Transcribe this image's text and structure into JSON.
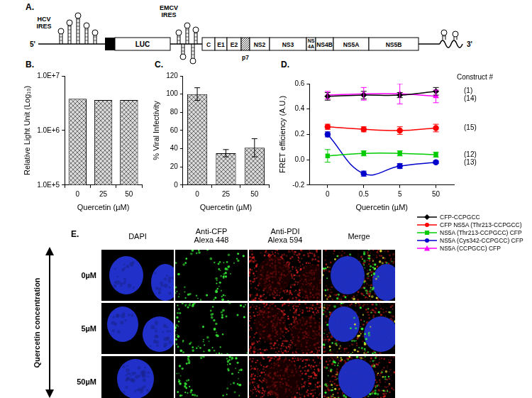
{
  "panel_a": {
    "title": "A.",
    "five_prime": "5'",
    "three_prime": "3'",
    "hcv_ires": [
      "HCV",
      "IRES"
    ],
    "reporter": "LUC",
    "emcv_ires": [
      "EMCV",
      "IRES"
    ],
    "genes": [
      [
        "C"
      ],
      [
        "E1"
      ],
      [
        "E2"
      ],
      [
        "p7"
      ],
      [
        "NS2"
      ],
      [
        "NS3"
      ],
      [
        "NS",
        "4A"
      ],
      [
        "NS4B"
      ],
      [
        "NS5A"
      ],
      [
        "NS5B"
      ]
    ]
  },
  "chart_data": [
    {
      "type": "bar",
      "title": "B.",
      "categories": [
        "0",
        "25",
        "50"
      ],
      "values": [
        3800000,
        3600000,
        3600000
      ],
      "color": "#d9d9d9",
      "x_label": "Quercetin (µM)",
      "y_label": "Relative Light Unit (Log₁₀)",
      "log": "y",
      "ylim": [
        100000,
        10000000
      ],
      "yticks": [
        {
          "value": 100000,
          "label": "1.0E+5"
        },
        {
          "value": 1000000,
          "label": "1.0E+6"
        },
        {
          "value": 10000000,
          "label": "1.0E+7"
        }
      ],
      "grid": false
    },
    {
      "type": "bar",
      "title": "C.",
      "categories": [
        "0",
        "25",
        "50"
      ],
      "values": [
        100,
        35,
        41
      ],
      "errors": [
        7,
        4,
        10
      ],
      "color": "#d9d9d9",
      "x_label": "Quercetin (µM)",
      "y_label": "% Viral Infectivity",
      "ylim": [
        0,
        120
      ],
      "yticks": [
        0,
        20,
        40,
        60,
        80,
        100,
        120
      ],
      "grid": false
    },
    {
      "type": "line",
      "title": "D.",
      "categories": [
        "0",
        "0.5",
        "5",
        "50"
      ],
      "x_label": "Quercetin (µM)",
      "y_label": "FRET efficiency (A.U.)",
      "ylim": [
        -0.2,
        0.6
      ],
      "yticks": [
        -0.2,
        {
          "value": 0,
          "label": "0.0"
        },
        0.2,
        0.4,
        0.6
      ],
      "grid": false,
      "legend": "right",
      "label_title": "Construct #",
      "series": [
        {
          "name": "CFP-CCPGCC",
          "label": "(1)",
          "color": "#000000",
          "marker": "diamond",
          "values": [
            0.5,
            0.51,
            0.51,
            0.54
          ],
          "errors": [
            0.03,
            0.03,
            0.02,
            0.03
          ]
        },
        {
          "name": "CFP NS5A (Thr213-CCPGCC)",
          "label": "(15)",
          "color": "#ff0000",
          "marker": "circle",
          "values": [
            0.26,
            0.24,
            0.23,
            0.25
          ],
          "errors": [
            0.02,
            0.02,
            0.03,
            0.03
          ]
        },
        {
          "name": "NS5A (Thr213-CCPGCC) CFP",
          "label": "(12)",
          "color": "#00cc00",
          "marker": "square",
          "values": [
            0.03,
            0.05,
            0.05,
            0.04
          ],
          "errors": [
            0.05,
            0.02,
            0.02,
            0.02
          ]
        },
        {
          "name": "NS5A (Cys342-CCPGCC) CFP",
          "label": "(13)",
          "color": "#0000cc",
          "marker": "circle",
          "values": [
            0.2,
            -0.11,
            -0.05,
            -0.02
          ],
          "errors": [
            0.02,
            0.02,
            0.02,
            0.01
          ]
        },
        {
          "name": "NS5A (CCPGCC) CFP",
          "label": "(14)",
          "color": "#ff00ff",
          "marker": "triangle",
          "values": [
            0.51,
            0.52,
            0.52,
            0.5
          ],
          "errors": [
            0.03,
            0.05,
            0.08,
            0.05
          ]
        }
      ]
    }
  ],
  "panel_e": {
    "title": "E.",
    "columns": [
      [
        "DAPI"
      ],
      [
        "Anti-CFP",
        "Alexa 448"
      ],
      [
        "Anti-PDI",
        "Alexa 594"
      ],
      [
        "Merge"
      ]
    ],
    "rows": [
      "0µM",
      "5µM",
      "50µM"
    ],
    "axis_label": "Quercetin concentration"
  }
}
